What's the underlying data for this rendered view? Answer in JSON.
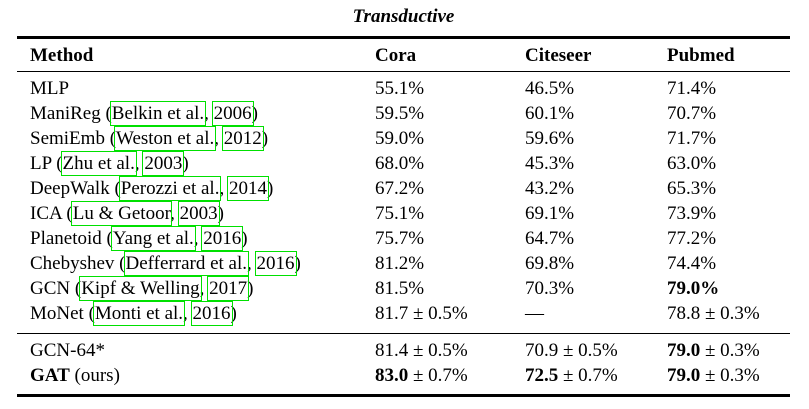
{
  "title": "Transductive",
  "columns": [
    "Method",
    "Cora",
    "Citeseer",
    "Pubmed"
  ],
  "link_box_color": "#00e000",
  "text_color": "#000000",
  "rows": [
    {
      "method": {
        "pre": "MLP"
      },
      "cora": {
        "n": "55.1%"
      },
      "citeseer": {
        "n": "46.5%"
      },
      "pubmed": {
        "n": "71.4%"
      }
    },
    {
      "method": {
        "pre": "ManiReg (",
        "author": "Belkin et al.",
        "year": "2006",
        "post": ")"
      },
      "cora": {
        "n": "59.5%"
      },
      "citeseer": {
        "n": "60.1%"
      },
      "pubmed": {
        "n": "70.7%"
      }
    },
    {
      "method": {
        "pre": "SemiEmb (",
        "author": "Weston et al.",
        "year": "2012",
        "post": ")"
      },
      "cora": {
        "n": "59.0%"
      },
      "citeseer": {
        "n": "59.6%"
      },
      "pubmed": {
        "n": "71.7%"
      }
    },
    {
      "method": {
        "pre": "LP (",
        "author": "Zhu et al.",
        "year": "2003",
        "post": ")"
      },
      "cora": {
        "n": "68.0%"
      },
      "citeseer": {
        "n": "45.3%"
      },
      "pubmed": {
        "n": "63.0%"
      }
    },
    {
      "method": {
        "pre": "DeepWalk (",
        "author": "Perozzi et al.",
        "year": "2014",
        "post": ")"
      },
      "cora": {
        "n": "67.2%"
      },
      "citeseer": {
        "n": "43.2%"
      },
      "pubmed": {
        "n": "65.3%"
      }
    },
    {
      "method": {
        "pre": "ICA (",
        "author": "Lu & Getoor",
        "year": "2003",
        "post": ")"
      },
      "cora": {
        "n": "75.1%"
      },
      "citeseer": {
        "n": "69.1%"
      },
      "pubmed": {
        "n": "73.9%"
      }
    },
    {
      "method": {
        "pre": "Planetoid (",
        "author": "Yang et al.",
        "year": "2016",
        "post": ")"
      },
      "cora": {
        "n": "75.7%"
      },
      "citeseer": {
        "n": "64.7%"
      },
      "pubmed": {
        "n": "77.2%"
      }
    },
    {
      "method": {
        "pre": "Chebyshev (",
        "author": "Defferrard et al.",
        "year": "2016",
        "post": ")"
      },
      "cora": {
        "n": "81.2%"
      },
      "citeseer": {
        "n": "69.8%"
      },
      "pubmed": {
        "n": "74.4%"
      }
    },
    {
      "method": {
        "pre": "GCN (",
        "author": "Kipf & Welling",
        "year": "2017",
        "post": ")"
      },
      "cora": {
        "n": "81.5%"
      },
      "citeseer": {
        "n": "70.3%"
      },
      "pubmed": {
        "b": "79.0%",
        "n": ""
      }
    },
    {
      "method": {
        "pre": "MoNet (",
        "author": "Monti et al.",
        "year": "2016",
        "post": ")"
      },
      "cora": {
        "n": "81.7 ± 0.5%"
      },
      "citeseer": {
        "n": "—"
      },
      "pubmed": {
        "n": "78.8 ± 0.3%"
      }
    }
  ],
  "footer_rows": [
    {
      "method": {
        "pre": "GCN-64*"
      },
      "cora": {
        "n": "81.4 ± 0.5%"
      },
      "citeseer": {
        "n": "70.9 ± 0.5%"
      },
      "pubmed": {
        "b": "79.0",
        "n": " ± 0.3%"
      }
    },
    {
      "method": {
        "bold": "GAT",
        "pre": " (ours)"
      },
      "cora": {
        "b": "83.0",
        "n": " ± 0.7%"
      },
      "citeseer": {
        "b": "72.5",
        "n": " ± 0.7%"
      },
      "pubmed": {
        "b": "79.0",
        "n": " ± 0.3%"
      }
    }
  ],
  "citation_separator": ", "
}
